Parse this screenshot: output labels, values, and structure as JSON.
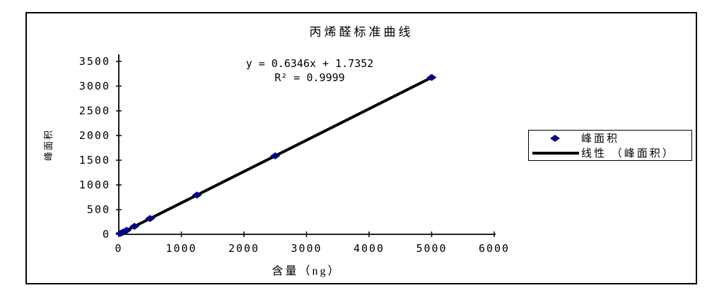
{
  "chart_data": {
    "type": "scatter",
    "title": "丙烯醛标准曲线",
    "xlabel": "含量（ng）",
    "ylabel": "峰面积",
    "xlim": [
      0,
      6000
    ],
    "ylim": [
      0,
      3500
    ],
    "x_ticks": [
      0,
      1000,
      2000,
      3000,
      4000,
      5000,
      6000
    ],
    "y_ticks": [
      0,
      500,
      1000,
      1500,
      2000,
      2500,
      3000,
      3500
    ],
    "grid": "off",
    "legend_position": "right",
    "series": [
      {
        "name": "峰面积",
        "type": "scatter",
        "marker": "diamond",
        "color": "#00008B",
        "points": [
          {
            "x": 25,
            "y": 18
          },
          {
            "x": 62.5,
            "y": 41
          },
          {
            "x": 125,
            "y": 81
          },
          {
            "x": 250,
            "y": 160
          },
          {
            "x": 500,
            "y": 319
          },
          {
            "x": 1250,
            "y": 795
          },
          {
            "x": 2500,
            "y": 1588
          },
          {
            "x": 5000,
            "y": 3175
          }
        ]
      },
      {
        "name": "线性 （峰面积）",
        "type": "line",
        "color": "#000000",
        "equation": {
          "slope": 0.6346,
          "intercept": 1.7352
        },
        "x_range": [
          0,
          5000
        ]
      }
    ],
    "annotations": {
      "equation": "y = 0.6346x + 1.7352",
      "r_squared": "R² = 0.9999"
    },
    "legend": [
      {
        "label": "峰面积",
        "marker": "diamond",
        "color": "#00008B"
      },
      {
        "label": "线性 （峰面积）",
        "marker": "line",
        "color": "#000000"
      }
    ]
  }
}
